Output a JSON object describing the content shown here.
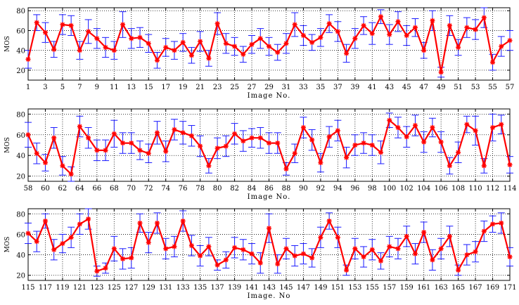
{
  "chart_data": [
    {
      "type": "line",
      "title": "",
      "xlabel": "Image No.",
      "ylabel": "MOS",
      "xlim": [
        1,
        57
      ],
      "ylim": [
        10,
        83
      ],
      "x_ticks": [
        1,
        3,
        5,
        7,
        9,
        11,
        13,
        15,
        17,
        19,
        21,
        23,
        25,
        27,
        29,
        31,
        33,
        35,
        37,
        39,
        41,
        43,
        45,
        47,
        49,
        51,
        53,
        55,
        57
      ],
      "y_ticks": [
        20,
        40,
        60,
        80
      ],
      "grid": true,
      "series": [
        {
          "color": "#ff0000",
          "error_color": "#1a1aff",
          "x": [
            1,
            2,
            3,
            4,
            5,
            6,
            7,
            8,
            9,
            10,
            11,
            12,
            13,
            14,
            15,
            16,
            17,
            18,
            19,
            20,
            21,
            22,
            23,
            24,
            25,
            26,
            27,
            28,
            29,
            30,
            31,
            32,
            33,
            34,
            35,
            36,
            37,
            38,
            39,
            40,
            41,
            42,
            43,
            44,
            45,
            46,
            47,
            48,
            49,
            50,
            51,
            52,
            53,
            54,
            55,
            56,
            57
          ],
          "values": [
            31,
            68,
            58,
            41,
            66,
            65,
            40,
            59,
            52,
            43,
            40,
            66,
            52,
            53,
            47,
            30,
            43,
            40,
            48,
            35,
            49,
            32,
            67,
            47,
            44,
            36,
            46,
            52,
            44,
            38,
            47,
            66,
            55,
            48,
            53,
            67,
            59,
            37,
            52,
            65,
            57,
            74,
            56,
            69,
            55,
            63,
            40,
            70,
            18,
            65,
            43,
            63,
            61,
            73,
            28,
            44,
            50
          ],
          "errors": [
            9,
            8,
            10,
            8,
            10,
            10,
            9,
            12,
            10,
            10,
            9,
            13,
            10,
            10,
            9,
            8,
            9,
            9,
            9,
            8,
            10,
            8,
            11,
            10,
            9,
            8,
            9,
            10,
            9,
            8,
            10,
            12,
            10,
            8,
            9,
            9,
            10,
            9,
            10,
            9,
            11,
            7,
            10,
            10,
            10,
            9,
            8,
            10,
            5,
            10,
            8,
            10,
            10,
            10,
            8,
            10,
            10
          ]
        }
      ]
    },
    {
      "type": "line",
      "title": "",
      "xlabel": "Image No.",
      "ylabel": "MOS",
      "xlim": [
        58,
        114
      ],
      "ylim": [
        15,
        85
      ],
      "x_ticks": [
        58,
        60,
        62,
        64,
        66,
        68,
        70,
        72,
        74,
        76,
        78,
        80,
        82,
        84,
        86,
        88,
        90,
        92,
        94,
        96,
        98,
        100,
        102,
        104,
        106,
        108,
        110,
        112,
        114
      ],
      "y_ticks": [
        20,
        40,
        60,
        80
      ],
      "grid": true,
      "series": [
        {
          "color": "#ff0000",
          "error_color": "#1a1aff",
          "x": [
            58,
            59,
            60,
            61,
            62,
            63,
            64,
            65,
            66,
            67,
            68,
            69,
            70,
            71,
            72,
            73,
            74,
            75,
            76,
            77,
            78,
            79,
            80,
            81,
            82,
            83,
            84,
            85,
            86,
            87,
            88,
            89,
            90,
            91,
            92,
            93,
            94,
            95,
            96,
            97,
            98,
            99,
            100,
            101,
            102,
            103,
            104,
            105,
            106,
            107,
            108,
            109,
            110,
            111,
            112,
            113,
            114
          ],
          "values": [
            60,
            42,
            33,
            57,
            30,
            22,
            68,
            57,
            45,
            45,
            61,
            52,
            52,
            45,
            42,
            62,
            44,
            65,
            62,
            59,
            49,
            30,
            47,
            49,
            61,
            54,
            57,
            57,
            52,
            52,
            27,
            42,
            67,
            55,
            33,
            58,
            64,
            38,
            50,
            52,
            50,
            43,
            74,
            67,
            58,
            69,
            53,
            67,
            53,
            30,
            43,
            70,
            64,
            30,
            67,
            70,
            31
          ],
          "errors": [
            12,
            10,
            8,
            10,
            9,
            7,
            10,
            10,
            10,
            10,
            13,
            10,
            10,
            9,
            9,
            11,
            10,
            10,
            11,
            10,
            10,
            7,
            10,
            10,
            10,
            10,
            9,
            10,
            10,
            10,
            6,
            9,
            10,
            10,
            9,
            10,
            10,
            10,
            10,
            10,
            10,
            11,
            7,
            10,
            10,
            10,
            10,
            9,
            10,
            8,
            10,
            8,
            14,
            7,
            13,
            9,
            8
          ]
        }
      ]
    },
    {
      "type": "line",
      "title": "",
      "xlabel": "Image. No",
      "ylabel": "MOS",
      "xlim": [
        115,
        171
      ],
      "ylim": [
        15,
        85
      ],
      "x_ticks": [
        115,
        117,
        119,
        121,
        123,
        125,
        127,
        129,
        131,
        133,
        135,
        137,
        139,
        141,
        143,
        145,
        147,
        149,
        151,
        153,
        155,
        157,
        159,
        161,
        163,
        165,
        167,
        169,
        171
      ],
      "y_ticks": [
        20,
        40,
        60,
        80
      ],
      "grid": true,
      "series": [
        {
          "color": "#ff0000",
          "error_color": "#1a1aff",
          "x": [
            115,
            116,
            117,
            118,
            119,
            120,
            121,
            122,
            123,
            124,
            125,
            126,
            127,
            128,
            129,
            130,
            131,
            132,
            133,
            134,
            135,
            136,
            137,
            138,
            139,
            140,
            141,
            142,
            143,
            144,
            145,
            146,
            147,
            148,
            149,
            150,
            151,
            152,
            153,
            154,
            155,
            156,
            157,
            158,
            159,
            160,
            161,
            162,
            163,
            164,
            165,
            166,
            167,
            168,
            169,
            170,
            171
          ],
          "values": [
            61,
            53,
            73,
            45,
            51,
            57,
            70,
            75,
            24,
            27,
            46,
            36,
            37,
            71,
            52,
            71,
            46,
            48,
            73,
            49,
            39,
            48,
            30,
            35,
            47,
            45,
            41,
            32,
            66,
            31,
            46,
            39,
            41,
            37,
            57,
            73,
            57,
            25,
            46,
            38,
            45,
            34,
            48,
            46,
            58,
            41,
            62,
            35,
            46,
            58,
            25,
            40,
            43,
            63,
            70,
            71,
            38
          ],
          "errors": [
            10,
            10,
            7,
            10,
            9,
            10,
            10,
            10,
            5,
            5,
            12,
            10,
            10,
            9,
            10,
            10,
            10,
            10,
            10,
            10,
            10,
            9,
            5,
            8,
            10,
            10,
            10,
            10,
            14,
            9,
            10,
            10,
            10,
            9,
            10,
            8,
            10,
            5,
            10,
            10,
            10,
            8,
            10,
            10,
            10,
            10,
            10,
            10,
            10,
            10,
            5,
            10,
            10,
            10,
            8,
            10,
            9
          ]
        }
      ]
    }
  ]
}
